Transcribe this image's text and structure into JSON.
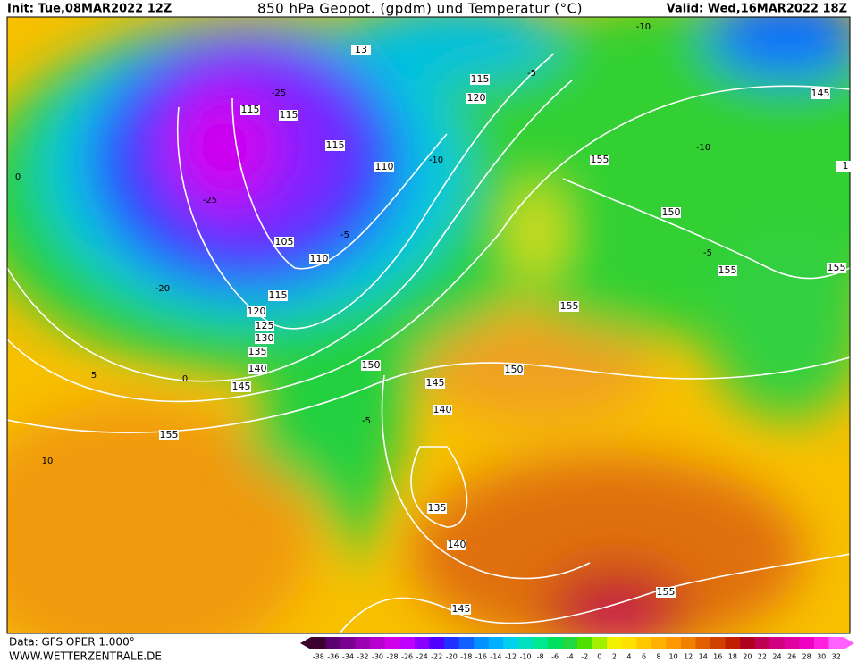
{
  "header": {
    "init": "Init: Tue,08MAR2022 12Z",
    "title": "850 hPa Geopot. (gpdm) und Temperatur (°C)",
    "valid": "Valid: Wed,16MAR2022 18Z"
  },
  "geopotential_labels": [
    "115",
    "115",
    "115",
    "110",
    "105",
    "110",
    "115",
    "120",
    "125",
    "130",
    "135",
    "140",
    "145",
    "150",
    "155",
    "115",
    "120",
    "155",
    "150",
    "145",
    "155",
    "155",
    "155",
    "150",
    "145",
    "140",
    "135",
    "140",
    "145",
    "155",
    "13",
    "1"
  ],
  "temperature_labels": [
    "-10",
    "-5",
    "-10",
    "-5",
    "0",
    "0",
    "5",
    "-5",
    "10",
    "-5",
    "-25",
    "-20",
    "-25",
    "-10"
  ],
  "colorbar": {
    "values": [
      -38,
      -36,
      -34,
      -32,
      -30,
      -28,
      -26,
      -24,
      -22,
      -20,
      -18,
      -16,
      -14,
      -12,
      -10,
      -8,
      -6,
      -4,
      -2,
      0,
      2,
      4,
      6,
      8,
      10,
      12,
      14,
      16,
      18,
      20,
      22,
      24,
      26,
      28,
      30,
      32
    ],
    "colors": [
      "#3c0030",
      "#5a0070",
      "#7a0090",
      "#9a00b0",
      "#b800d0",
      "#d000e8",
      "#c000ff",
      "#8a00ff",
      "#5000ff",
      "#2030ff",
      "#1060ff",
      "#0090ff",
      "#00b0ff",
      "#00d0f0",
      "#00e0c0",
      "#00e890",
      "#00e060",
      "#20d840",
      "#50e000",
      "#a0f000",
      "#f0f000",
      "#ffe000",
      "#ffc800",
      "#ffb000",
      "#ff9800",
      "#f08000",
      "#e06000",
      "#d04000",
      "#c02000",
      "#b00020",
      "#c00050",
      "#d00080",
      "#e000a0",
      "#f000c0",
      "#ff20e0",
      "#ff60ff"
    ]
  },
  "footer": {
    "data": "Data: GFS OPER 1.000°",
    "site": "WWW.WETTERZENTRALE.DE"
  }
}
